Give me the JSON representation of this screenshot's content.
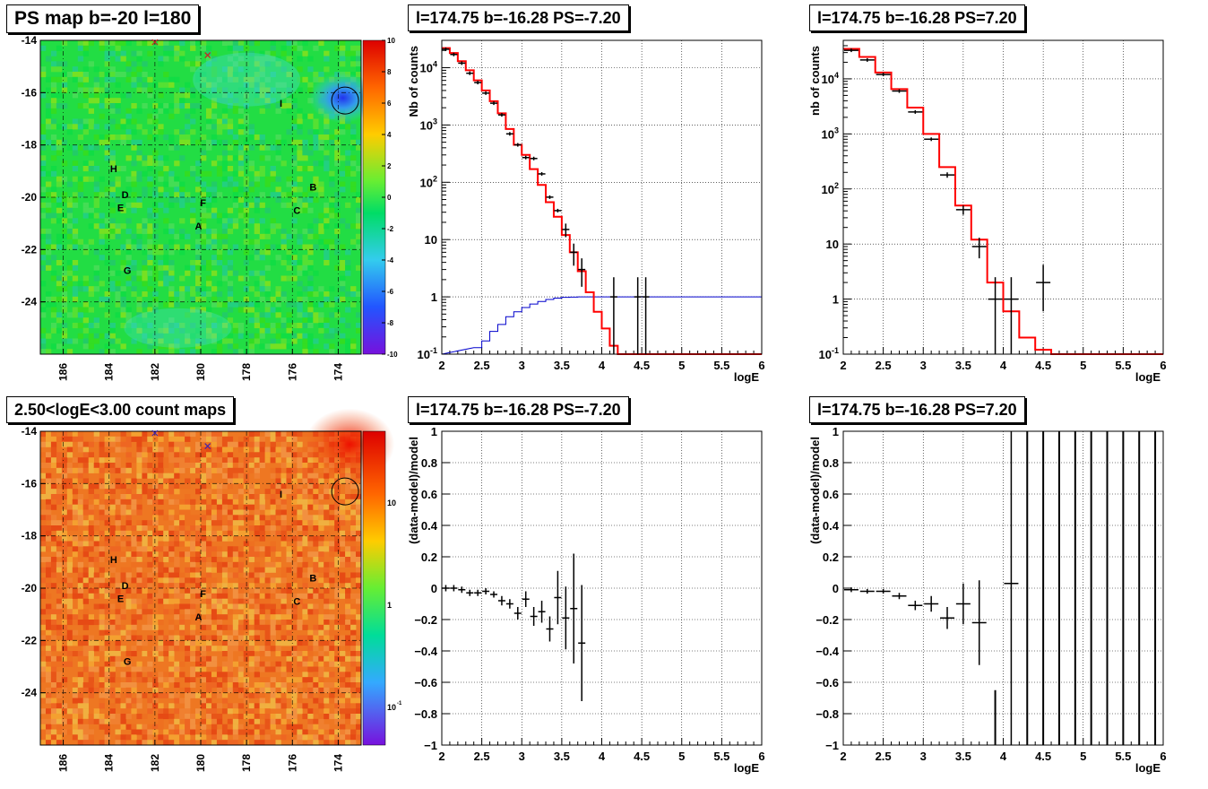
{
  "titles": {
    "map_ps": "PS map b=-20 l=180",
    "map_counts": "2.50<logE<3.00 count maps",
    "spec_left": "l=174.75 b=-16.28 PS=-7.20",
    "spec_right": "l=174.75 b=-16.28 PS=7.20",
    "res_left": "l=174.75 b=-16.28 PS=-7.20",
    "res_right": "l=174.75 b=-16.28 PS=7.20"
  },
  "maps": {
    "xticks": [
      "186",
      "184",
      "182",
      "180",
      "178",
      "176",
      "174"
    ],
    "yticks": [
      "-14",
      "-16",
      "-18",
      "-20",
      "-22",
      "-24"
    ],
    "labels": [
      "H",
      "D",
      "E",
      "F",
      "A",
      "B",
      "C",
      "G",
      "I"
    ],
    "ps_colorbar_ticks": [
      "10",
      "8",
      "6",
      "4",
      "2",
      "0",
      "-2",
      "-4",
      "-6",
      "-8",
      "-10"
    ],
    "counts_colorbar_ticks": [
      "10",
      "1",
      "10",
      "-1"
    ]
  },
  "colors": {
    "data": "#000000",
    "model": "#ff0000",
    "ratio": "#0000cc",
    "ps_background": "#22dd44",
    "counts_background": "#ee7722"
  },
  "chart_data": [
    {
      "type": "heatmap",
      "title": "PS map b=-20 l=180",
      "xlim": [
        187,
        173
      ],
      "ylim": [
        -26,
        -14
      ],
      "zlim": [
        -10,
        10
      ],
      "grid": true,
      "source_marker": {
        "l": 173.7,
        "b": -16.3
      },
      "cross_markers": [
        {
          "l": 182,
          "b": -14
        },
        {
          "l": 179.7,
          "b": -14.5
        }
      ],
      "labels": [
        {
          "text": "H",
          "l": 183.8,
          "b": -18.9
        },
        {
          "text": "D",
          "l": 183.3,
          "b": -19.9
        },
        {
          "text": "E",
          "l": 183.5,
          "b": -20.4
        },
        {
          "text": "F",
          "l": 179.9,
          "b": -20.2
        },
        {
          "text": "A",
          "l": 180.1,
          "b": -21.1
        },
        {
          "text": "B",
          "l": 175.1,
          "b": -19.6
        },
        {
          "text": "C",
          "l": 175.8,
          "b": -20.5
        },
        {
          "text": "G",
          "l": 183.2,
          "b": -22.8
        },
        {
          "text": "I",
          "l": 176.5,
          "b": -16.4
        }
      ]
    },
    {
      "type": "heatmap",
      "title": "2.50<logE<3.00 count maps",
      "xlim": [
        187,
        173
      ],
      "ylim": [
        -26,
        -14
      ],
      "zscale": "log",
      "grid": true
    },
    {
      "type": "line",
      "title": "l=174.75 b=-16.28 PS=-7.20",
      "xlabel": "logE",
      "ylabel": "Nb of counts",
      "xlim": [
        2,
        6
      ],
      "ylim": [
        0.1,
        30000
      ],
      "yscale": "log",
      "series": [
        {
          "name": "",
          "kind": "data",
          "x": [
            2.05,
            2.15,
            2.25,
            2.35,
            2.45,
            2.55,
            2.65,
            2.75,
            2.85,
            2.95,
            3.05,
            3.15,
            3.25,
            3.35,
            3.45,
            3.55,
            3.65,
            3.75,
            4.15,
            4.45,
            4.55
          ],
          "y": [
            21000,
            17000,
            12000,
            8000,
            5500,
            3600,
            2400,
            1500,
            700,
            450,
            270,
            260,
            140,
            55,
            32,
            15,
            6,
            3,
            1,
            1,
            1
          ],
          "yerr_lo": [
            0,
            0,
            0,
            0,
            0,
            0,
            0,
            0,
            0,
            0,
            0,
            0,
            0,
            0,
            0,
            4,
            2.5,
            1.5,
            0.95,
            0.95,
            0.95
          ],
          "yerr_hi": [
            0,
            0,
            0,
            0,
            0,
            0,
            0,
            0,
            0,
            0,
            0,
            0,
            0,
            0,
            0,
            4,
            2.5,
            1.7,
            1.2,
            1.2,
            1.2
          ]
        },
        {
          "name": "",
          "kind": "model-step",
          "width": 0.1,
          "x": [
            2.0,
            2.1,
            2.2,
            2.3,
            2.4,
            2.5,
            2.6,
            2.7,
            2.8,
            2.9,
            3.0,
            3.1,
            3.2,
            3.3,
            3.4,
            3.5,
            3.6,
            3.7,
            3.8,
            3.9,
            4.0,
            4.1,
            4.2
          ],
          "y": [
            22000,
            18000,
            13000,
            9000,
            6000,
            4000,
            2600,
            1600,
            850,
            450,
            300,
            170,
            90,
            45,
            25,
            12,
            6,
            2.8,
            1.2,
            0.55,
            0.28,
            0.14,
            0.1
          ]
        },
        {
          "name": "",
          "kind": "ratio-step",
          "width": 0.1,
          "x": [
            2.4,
            2.5,
            2.6,
            2.7,
            2.8,
            2.9,
            3.0,
            3.1,
            3.2,
            3.3,
            3.4,
            3.5,
            3.6,
            3.7,
            3.8,
            3.9,
            4.0
          ],
          "y": [
            0.13,
            0.17,
            0.25,
            0.33,
            0.45,
            0.55,
            0.65,
            0.75,
            0.83,
            0.9,
            0.95,
            0.98,
            0.99,
            1.0,
            1.0,
            1.0,
            1.0
          ]
        }
      ]
    },
    {
      "type": "line",
      "title": "l=174.75 b=-16.28 PS=7.20",
      "xlabel": "logE",
      "ylabel": "nb of counts",
      "xlim": [
        2,
        6
      ],
      "ylim": [
        0.1,
        50000
      ],
      "yscale": "log",
      "series": [
        {
          "name": "",
          "kind": "data",
          "x": [
            2.1,
            2.3,
            2.5,
            2.7,
            2.9,
            3.1,
            3.3,
            3.5,
            3.7,
            3.9,
            4.1,
            4.5
          ],
          "y": [
            33000,
            22000,
            12000,
            6000,
            2500,
            800,
            180,
            42,
            9,
            1,
            1,
            2
          ],
          "yerr_lo": [
            0,
            0,
            0,
            0,
            0,
            0,
            20,
            8,
            3.5,
            0.9,
            0.95,
            1.4
          ],
          "yerr_hi": [
            0,
            0,
            0,
            0,
            0,
            0,
            20,
            8,
            4,
            1.5,
            1.5,
            2.2
          ]
        },
        {
          "name": "",
          "kind": "model-step",
          "width": 0.2,
          "x": [
            2.0,
            2.2,
            2.4,
            2.6,
            2.8,
            3.0,
            3.2,
            3.4,
            3.6,
            3.8,
            4.0,
            4.2,
            4.4,
            4.6
          ],
          "y": [
            35000,
            25000,
            13000,
            6500,
            3000,
            1000,
            250,
            50,
            12,
            2,
            0.6,
            0.2,
            0.12,
            0.1
          ]
        }
      ]
    },
    {
      "type": "scatter",
      "title": "l=174.75 b=-16.28 PS=-7.20",
      "xlabel": "logE",
      "ylabel": "(data-model)/model",
      "xlim": [
        2,
        6
      ],
      "ylim": [
        -1,
        1
      ],
      "series": [
        {
          "name": "",
          "x": [
            2.05,
            2.15,
            2.25,
            2.35,
            2.45,
            2.55,
            2.65,
            2.75,
            2.85,
            2.95,
            3.05,
            3.15,
            3.25,
            3.35,
            3.45,
            3.55,
            3.65,
            3.75
          ],
          "y": [
            0,
            0,
            -0.01,
            -0.03,
            -0.03,
            -0.02,
            -0.04,
            -0.08,
            -0.1,
            -0.16,
            -0.07,
            -0.18,
            -0.15,
            -0.26,
            -0.06,
            -0.19,
            -0.13,
            -0.35
          ],
          "yerr": [
            0.02,
            0.02,
            0.02,
            0.02,
            0.02,
            0.02,
            0.02,
            0.03,
            0.03,
            0.04,
            0.05,
            0.06,
            0.07,
            0.08,
            0.17,
            0.2,
            0.35,
            0.37
          ]
        }
      ]
    },
    {
      "type": "scatter",
      "title": "l=174.75 b=-16.28 PS=7.20",
      "xlabel": "logE",
      "ylabel": "(data-model)/model",
      "xlim": [
        2,
        6
      ],
      "ylim": [
        -1,
        1
      ],
      "series": [
        {
          "name": "",
          "x": [
            2.1,
            2.3,
            2.5,
            2.7,
            2.9,
            3.1,
            3.3,
            3.5,
            3.7,
            3.9,
            4.1,
            4.3,
            4.5,
            4.7,
            4.9,
            5.1,
            5.3,
            5.5,
            5.7,
            5.9
          ],
          "y": [
            -0.01,
            -0.02,
            -0.02,
            -0.05,
            -0.11,
            -0.1,
            -0.19,
            -0.1,
            -0.22,
            null,
            0.03,
            null,
            null,
            null,
            null,
            null,
            null,
            null,
            null,
            null
          ],
          "yerr": [
            0.01,
            0.01,
            0.01,
            0.02,
            0.03,
            0.05,
            0.07,
            0.13,
            0.27,
            null,
            1.5,
            null,
            null,
            null,
            null,
            null,
            null,
            null,
            null,
            null
          ]
        }
      ]
    }
  ]
}
